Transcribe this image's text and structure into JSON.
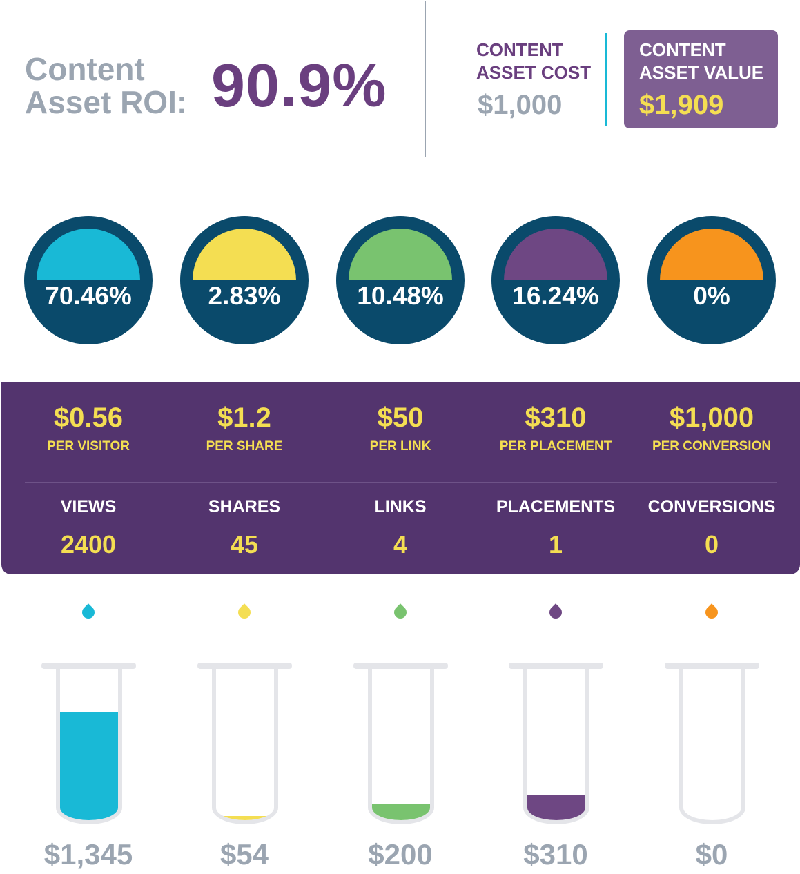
{
  "header": {
    "roi_label": "Content Asset ROI:",
    "roi_value": "90.9%",
    "cost_label": "CONTENT ASSET COST",
    "cost_value": "$1,000",
    "value_label": "CONTENT ASSET VALUE",
    "value_value": "$1,909"
  },
  "colors": {
    "purple": "#53346e",
    "navy": "#0a4a6b",
    "yellow": "#f4de52",
    "gray": "#9ba5b1"
  },
  "metrics": [
    {
      "color": "#19b9d6",
      "percent_label": "70.46%",
      "percent": 70.46,
      "rate": "$0.56",
      "unit": "PER VISITOR",
      "label": "VIEWS",
      "count": "2400",
      "dollar": "$1,345"
    },
    {
      "color": "#f4de52",
      "percent_label": "2.83%",
      "percent": 2.83,
      "rate": "$1.2",
      "unit": "PER SHARE",
      "label": "SHARES",
      "count": "45",
      "dollar": "$54"
    },
    {
      "color": "#79c36f",
      "percent_label": "10.48%",
      "percent": 10.48,
      "rate": "$50",
      "unit": "PER LINK",
      "label": "LINKS",
      "count": "4",
      "dollar": "$200"
    },
    {
      "color": "#6e4783",
      "percent_label": "16.24%",
      "percent": 16.24,
      "rate": "$310",
      "unit": "PER PLACEMENT",
      "label": "PLACEMENTS",
      "count": "1",
      "dollar": "$310"
    },
    {
      "color": "#f7941d",
      "percent_label": "0%",
      "percent": 0,
      "rate": "$1,000",
      "unit": "PER CONVERSION",
      "label": "CONVERSIONS",
      "count": "0",
      "dollar": "$0"
    }
  ]
}
